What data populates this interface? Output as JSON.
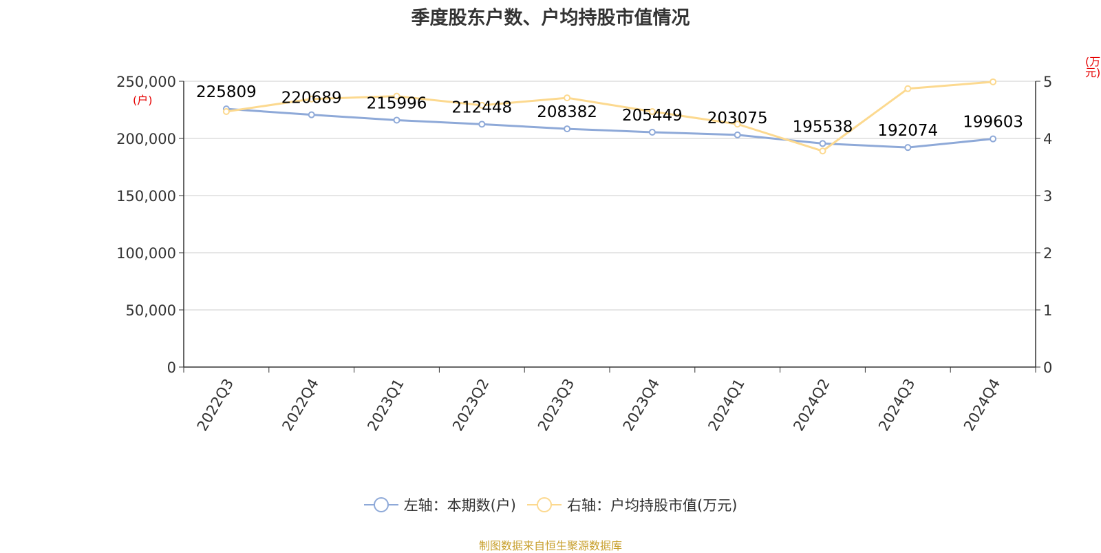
{
  "chart_data": {
    "type": "line",
    "title": "季度股东户数、户均持股市值情况",
    "categories": [
      "2022Q3",
      "2022Q4",
      "2023Q1",
      "2023Q2",
      "2023Q3",
      "2023Q4",
      "2024Q1",
      "2024Q2",
      "2024Q3",
      "2024Q4"
    ],
    "series": [
      {
        "name": "左轴：本期数(户)",
        "axis": "left",
        "color": "#8ea9d8",
        "values": [
          225809,
          220689,
          215996,
          212448,
          208382,
          205449,
          203075,
          195538,
          192074,
          199603
        ],
        "labels": [
          "225809",
          "220689",
          "215996",
          "212448",
          "208382",
          "205449",
          "203075",
          "195538",
          "192074",
          "199603"
        ]
      },
      {
        "name": "右轴：户均持股市值(万元)",
        "axis": "right",
        "color": "#fcd98f",
        "values": [
          4.47,
          4.69,
          4.74,
          4.58,
          4.71,
          4.47,
          4.25,
          3.78,
          4.87,
          4.99
        ]
      }
    ],
    "y_left": {
      "unit": "(户)",
      "min": 0,
      "max": 250000,
      "ticks": [
        "0",
        "50,000",
        "100,000",
        "150,000",
        "200,000",
        "250,000"
      ]
    },
    "y_right": {
      "unit": "(万元)",
      "min": 0,
      "max": 5,
      "ticks": [
        "0",
        "1",
        "2",
        "3",
        "4",
        "5"
      ]
    },
    "grid": true,
    "legend_position": "bottom"
  },
  "source": "制图数据来自恒生聚源数据库"
}
